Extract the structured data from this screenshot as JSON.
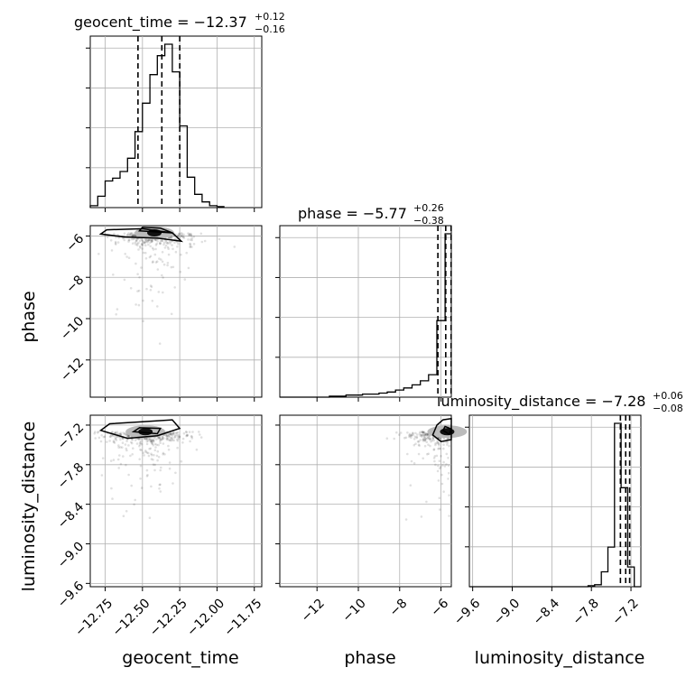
{
  "chart_data": {
    "type": "corner",
    "parameters": [
      "geocent_time",
      "phase",
      "luminosity_distance"
    ],
    "summaries": [
      {
        "param": "geocent_time",
        "label": "geocent_time",
        "median": "−12.37",
        "plus": "+0.12",
        "minus": "−0.16",
        "q16": -12.53,
        "q50": -12.37,
        "q84": -12.25
      },
      {
        "param": "phase",
        "label": "phase",
        "median": "−5.77",
        "plus": "+0.26",
        "minus": "−0.38",
        "q16": -6.15,
        "q50": -5.77,
        "q84": -5.51
      },
      {
        "param": "luminosity_distance",
        "label": "luminosity_distance",
        "median": "−7.28",
        "plus": "+0.06",
        "minus": "−0.08",
        "q16": -7.36,
        "q50": -7.28,
        "q84": -7.22
      }
    ],
    "ranges": {
      "geocent_time": [
        -12.85,
        -11.7
      ],
      "phase": [
        -13.8,
        -5.5
      ],
      "luminosity_distance": [
        -9.65,
        -7.05
      ]
    },
    "ticks": {
      "geocent_time": {
        "values": [
          -12.75,
          -12.5,
          -12.25,
          -12.0,
          -11.75
        ],
        "labels": [
          "−12.75",
          "−12.50",
          "−12.25",
          "−12.00",
          "−11.75"
        ]
      },
      "phase": {
        "values": [
          -12,
          -10,
          -8,
          -6
        ],
        "labels": [
          "−12",
          "−10",
          "−8",
          "−6"
        ]
      },
      "luminosity_distance": {
        "values": [
          -9.6,
          -9.0,
          -8.4,
          -7.8,
          -7.2
        ],
        "labels": [
          "−9.6",
          "−9.0",
          "−8.4",
          "−7.8",
          "−7.2"
        ]
      }
    },
    "histograms": {
      "geocent_time": {
        "edges": [
          -12.85,
          -12.8,
          -12.75,
          -12.7,
          -12.65,
          -12.6,
          -12.55,
          -12.5,
          -12.45,
          -12.4,
          -12.35,
          -12.3,
          -12.25,
          -12.2,
          -12.15,
          -12.1,
          -12.05,
          -12.0,
          -11.95
        ],
        "counts": [
          2,
          12,
          28,
          31,
          38,
          52,
          80,
          110,
          140,
          160,
          172,
          143,
          86,
          32,
          14,
          6,
          2,
          1
        ]
      },
      "phase": {
        "edges": [
          -13.8,
          -13.4,
          -13.0,
          -12.6,
          -12.2,
          -11.8,
          -11.4,
          -11.0,
          -10.6,
          -10.2,
          -9.8,
          -9.4,
          -9.0,
          -8.6,
          -8.2,
          -7.8,
          -7.4,
          -7.0,
          -6.6,
          -6.2,
          -5.8,
          -5.5
        ],
        "counts": [
          0,
          0,
          0,
          0,
          0,
          0,
          1,
          1,
          2,
          2,
          3,
          3,
          4,
          5,
          7,
          9,
          12,
          16,
          22,
          75,
          160
        ]
      },
      "luminosity_distance": {
        "edges": [
          -9.65,
          -9.55,
          -9.45,
          -9.35,
          -9.25,
          -9.15,
          -9.05,
          -8.95,
          -8.85,
          -8.75,
          -8.65,
          -8.55,
          -8.45,
          -8.35,
          -8.25,
          -8.15,
          -8.05,
          -7.95,
          -7.85,
          -7.75,
          -7.65,
          -7.55,
          -7.45,
          -7.35,
          -7.25,
          -7.15,
          -7.05
        ],
        "counts": [
          0,
          0,
          0,
          0,
          0,
          0,
          0,
          0,
          0,
          0,
          0,
          0,
          0,
          0,
          0,
          0,
          0,
          0,
          1,
          2,
          15,
          40,
          165,
          100,
          20,
          0
        ]
      }
    },
    "joint": [
      {
        "x": "geocent_time",
        "y": "phase",
        "center": [
          -12.42,
          -5.85
        ],
        "contours": [
          [
            [
              -12.78,
              -5.9
            ],
            [
              -12.62,
              -6.05
            ],
            [
              -12.4,
              -6.1
            ],
            [
              -12.24,
              -6.25
            ],
            [
              -12.3,
              -5.85
            ],
            [
              -12.5,
              -5.65
            ],
            [
              -12.74,
              -5.7
            ]
          ],
          [
            [
              -12.52,
              -5.75
            ],
            [
              -12.3,
              -5.85
            ],
            [
              -12.38,
              -5.62
            ],
            [
              -12.5,
              -5.58
            ]
          ]
        ]
      },
      {
        "x": "geocent_time",
        "y": "luminosity_distance",
        "center": [
          -12.48,
          -7.3
        ],
        "contours": [
          [
            [
              -12.78,
              -7.28
            ],
            [
              -12.6,
              -7.4
            ],
            [
              -12.4,
              -7.36
            ],
            [
              -12.25,
              -7.25
            ],
            [
              -12.3,
              -7.12
            ],
            [
              -12.5,
              -7.15
            ],
            [
              -12.72,
              -7.18
            ]
          ],
          [
            [
              -12.56,
              -7.3
            ],
            [
              -12.4,
              -7.33
            ],
            [
              -12.38,
              -7.25
            ],
            [
              -12.52,
              -7.24
            ]
          ]
        ]
      },
      {
        "x": "phase",
        "y": "luminosity_distance",
        "center": [
          -5.7,
          -7.3
        ],
        "contours": [
          [
            [
              -6.2,
              -7.2
            ],
            [
              -6.4,
              -7.35
            ],
            [
              -6.0,
              -7.45
            ],
            [
              -5.5,
              -7.42
            ],
            [
              -5.5,
              -7.1
            ],
            [
              -5.9,
              -7.12
            ]
          ],
          [
            [
              -5.9,
              -7.28
            ],
            [
              -5.6,
              -7.34
            ],
            [
              -5.5,
              -7.26
            ],
            [
              -5.8,
              -7.22
            ]
          ]
        ]
      }
    ]
  }
}
